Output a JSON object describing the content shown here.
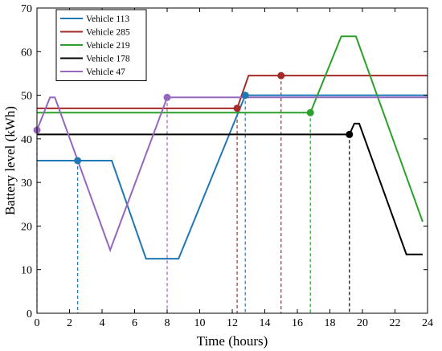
{
  "chart_data": {
    "type": "line",
    "xlabel": "Time (hours)",
    "ylabel": "Battery level (kWh)",
    "xlim": [
      0,
      24
    ],
    "ylim": [
      0,
      70
    ],
    "xticks": [
      0,
      2,
      4,
      6,
      8,
      10,
      12,
      14,
      16,
      18,
      20,
      22,
      24
    ],
    "yticks": [
      0,
      10,
      20,
      30,
      40,
      50,
      60,
      70
    ],
    "grid": false,
    "legend_position": "top-left",
    "series": [
      {
        "name": "Vehicle 113",
        "color": "#1f77b4",
        "points": [
          [
            0,
            35
          ],
          [
            2.5,
            35
          ],
          [
            4.6,
            35
          ],
          [
            6.7,
            12.5
          ],
          [
            8.7,
            12.5
          ],
          [
            12.8,
            50
          ],
          [
            24,
            50
          ]
        ],
        "markers": [
          [
            2.5,
            35
          ],
          [
            12.8,
            50
          ]
        ]
      },
      {
        "name": "Vehicle 285",
        "color": "#a52a2a",
        "points": [
          [
            0,
            47
          ],
          [
            12.3,
            47
          ],
          [
            13,
            54.5
          ],
          [
            15,
            54.5
          ],
          [
            24,
            54.5
          ]
        ],
        "markers": [
          [
            12.3,
            47
          ],
          [
            15,
            54.5
          ]
        ]
      },
      {
        "name": "Vehicle 219",
        "color": "#2ca02c",
        "points": [
          [
            0,
            46
          ],
          [
            16.8,
            46
          ],
          [
            18.7,
            63.5
          ],
          [
            19.6,
            63.5
          ],
          [
            23.7,
            21
          ]
        ],
        "markers": [
          [
            16.8,
            46
          ]
        ]
      },
      {
        "name": "Vehicle 178",
        "color": "#000000",
        "points": [
          [
            0,
            41
          ],
          [
            19.2,
            41
          ],
          [
            19.5,
            43.5
          ],
          [
            19.8,
            43.5
          ],
          [
            22.7,
            13.5
          ],
          [
            23.7,
            13.5
          ]
        ],
        "markers": [
          [
            19.2,
            41
          ]
        ]
      },
      {
        "name": "Vehicle 47",
        "color": "#9467bd",
        "points": [
          [
            0,
            42
          ],
          [
            0.8,
            49.5
          ],
          [
            1.1,
            49.5
          ],
          [
            4.5,
            14.5
          ],
          [
            8,
            49.5
          ],
          [
            24,
            49.5
          ]
        ],
        "markers": [
          [
            0,
            42
          ],
          [
            8,
            49.5
          ]
        ]
      }
    ],
    "dashed_drops": [
      {
        "x": 2.5,
        "y": 35,
        "color": "#1f77b4"
      },
      {
        "x": 12.8,
        "y": 50,
        "color": "#1f77b4"
      },
      {
        "x": 12.3,
        "y": 47,
        "color": "#a52a2a"
      },
      {
        "x": 15,
        "y": 54.5,
        "color": "#a52a2a"
      },
      {
        "x": 16.8,
        "y": 46,
        "color": "#2ca02c"
      },
      {
        "x": 19.2,
        "y": 41,
        "color": "#000000"
      },
      {
        "x": 0,
        "y": 42,
        "color": "#9467bd"
      },
      {
        "x": 8,
        "y": 49.5,
        "color": "#9467bd"
      }
    ]
  }
}
